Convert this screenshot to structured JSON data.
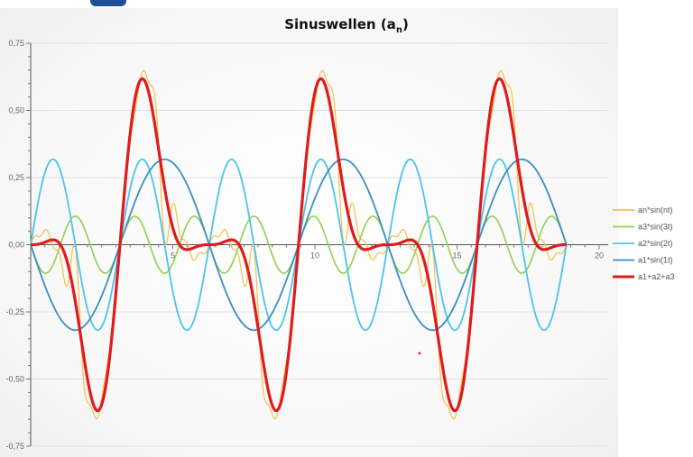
{
  "chart_data": {
    "type": "line",
    "title_main": "Sinuswellen (a",
    "title_sub": "n",
    "title_end": ")",
    "xlabel": "",
    "ylabel": "",
    "xlim": [
      0,
      20
    ],
    "ylim": [
      -0.75,
      0.75
    ],
    "x_ticks": [
      "5",
      "10",
      "15",
      "20"
    ],
    "y_ticks": [
      "0,75",
      "0,50",
      "0,25",
      "0,00",
      "-0,25",
      "-0,50",
      "-0,75"
    ],
    "x_range_plotted": [
      0,
      18.85
    ],
    "legend_position": "right",
    "series": [
      {
        "name": "an*sin(nt)",
        "color": "#f5c04a",
        "width": 1.2,
        "formula": "sum of a_n*sin(n*t), n = 1..7, a_n = 0.318 (n odd), 0.318 (n=2), -0.106 (n=3)"
      },
      {
        "name": "a3*sin(3t)",
        "color": "#92d050",
        "width": 1.6,
        "amplitude": -0.106,
        "frequency": 3
      },
      {
        "name": "a2*sin(2t)",
        "color": "#4cc3ef",
        "width": 1.8,
        "amplitude": 0.318,
        "frequency": 2
      },
      {
        "name": "a1*sin(1t)",
        "color": "#3a8fc0",
        "width": 1.8,
        "amplitude": -0.318,
        "frequency": 1
      },
      {
        "name": "a1+a2+a3",
        "color": "#e01b1b",
        "width": 3.2,
        "formula": "a1*sin(t) + a2*sin(2t) + a3*sin(3t)"
      }
    ]
  }
}
